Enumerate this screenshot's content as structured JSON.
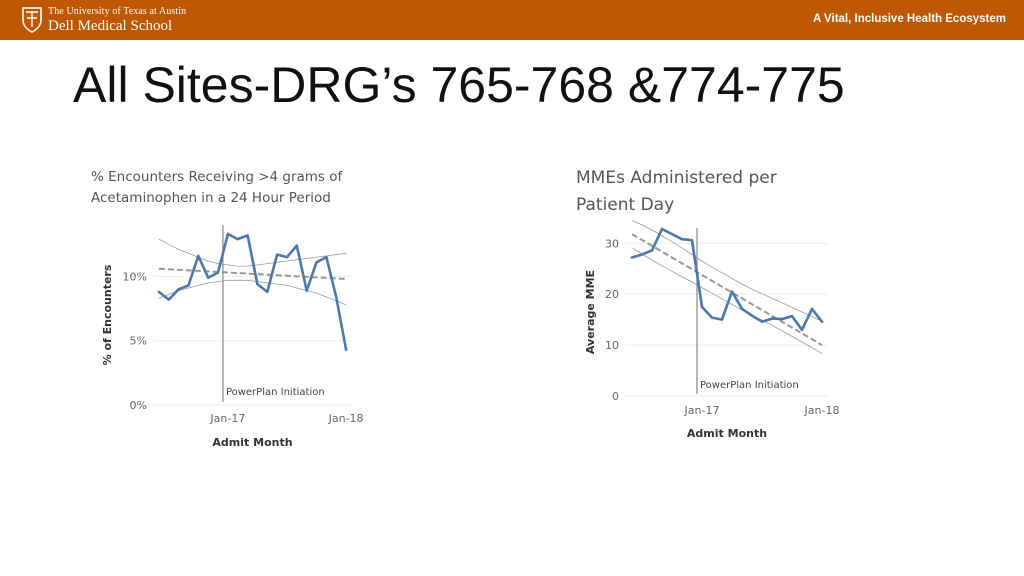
{
  "header": {
    "logo_line1": "The University of Texas at Austin",
    "logo_line2": "Dell Medical School",
    "tagline": "A Vital, Inclusive Health Ecosystem",
    "logo_icon": "shield-icon",
    "brand_color": "#bf5700"
  },
  "slide_title": "All Sites-DRG’s 765-768 &774-775",
  "chart_data": [
    {
      "type": "line",
      "title_lines": [
        "% Encounters Receiving >4 grams of",
        "Acetaminophen in a 24 Hour Period"
      ],
      "xlabel": "Admit Month",
      "ylabel": "% of Encounters",
      "ylim": [
        0,
        14
      ],
      "yticks": [
        {
          "value": 0,
          "label": "0%"
        },
        {
          "value": 5,
          "label": "5%"
        },
        {
          "value": 10,
          "label": "10%"
        }
      ],
      "xticks": [
        {
          "value": 7,
          "label": "Jan-17"
        },
        {
          "value": 19,
          "label": "Jan-18"
        }
      ],
      "xlim": [
        -0.6,
        19.6
      ],
      "series": [
        {
          "values": [
            8.8,
            8.2,
            9.0,
            9.3,
            11.6,
            9.9,
            10.3,
            13.3,
            12.9,
            13.2,
            9.4,
            8.8,
            11.7,
            11.5,
            12.4,
            8.9,
            11.1,
            11.5,
            8.4,
            4.3
          ],
          "color": "#4e79a7"
        }
      ],
      "trend": {
        "start": 10.6,
        "end": 9.8,
        "color": "#999999"
      },
      "bands": {
        "upper": [
          12.9,
          12.5,
          12.1,
          11.8,
          11.5,
          11.2,
          11.0,
          10.9,
          10.8,
          10.8,
          10.9,
          11.0,
          11.1,
          11.2,
          11.3,
          11.4,
          11.5,
          11.6,
          11.7,
          11.8
        ],
        "lower": [
          8.3,
          8.6,
          8.9,
          9.1,
          9.3,
          9.5,
          9.6,
          9.7,
          9.7,
          9.7,
          9.6,
          9.5,
          9.4,
          9.3,
          9.1,
          8.9,
          8.7,
          8.4,
          8.1,
          7.8
        ]
      },
      "annotation": {
        "x": 6.5,
        "label": "PowerPlan Initiation"
      },
      "grid": true
    },
    {
      "type": "line",
      "title_lines": [
        "MMEs Administered per",
        "Patient Day"
      ],
      "xlabel": "Admit Month",
      "ylabel": "Average MME",
      "ylim": [
        0,
        33
      ],
      "yticks": [
        {
          "value": 0,
          "label": "0"
        },
        {
          "value": 10,
          "label": "10"
        },
        {
          "value": 20,
          "label": "20"
        },
        {
          "value": 30,
          "label": "30"
        }
      ],
      "xticks": [
        {
          "value": 7,
          "label": "Jan-17"
        },
        {
          "value": 19,
          "label": "Jan-18"
        }
      ],
      "xlim": [
        -0.6,
        19.6
      ],
      "series": [
        {
          "values": [
            27.2,
            27.8,
            28.6,
            32.8,
            31.8,
            30.8,
            30.6,
            17.5,
            15.4,
            15.0,
            20.5,
            17.1,
            15.8,
            14.6,
            15.2,
            15.1,
            15.7,
            13.0,
            17.1,
            14.6
          ],
          "color": "#4e79a7"
        }
      ],
      "trend": {
        "start": 31.8,
        "end": 10.0,
        "color": "#999999"
      },
      "bands": {
        "upper": [
          34.5,
          33.6,
          32.6,
          31.5,
          30.3,
          29.1,
          27.8,
          26.5,
          25.3,
          24.2,
          23.1,
          22.0,
          21.0,
          20.1,
          19.2,
          18.3,
          17.4,
          16.5,
          15.6,
          14.7
        ],
        "lower": [
          29.1,
          27.9,
          26.7,
          25.6,
          24.5,
          23.4,
          22.4,
          21.3,
          20.2,
          19.1,
          18.0,
          16.9,
          15.9,
          14.9,
          13.9,
          12.8,
          11.7,
          10.6,
          9.5,
          8.3
        ]
      },
      "annotation": {
        "x": 6.5,
        "label": "PowerPlan Initiation"
      },
      "grid": true
    }
  ]
}
